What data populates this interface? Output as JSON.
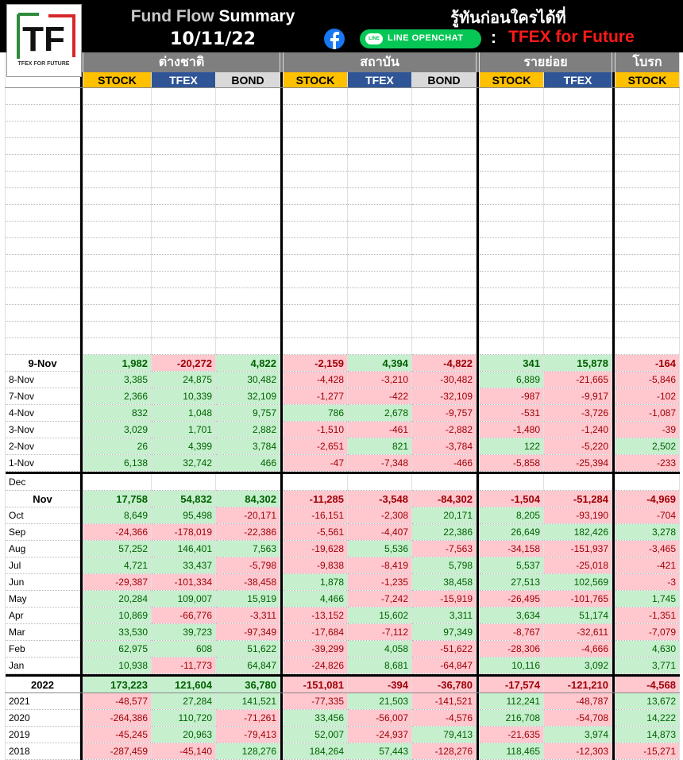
{
  "header": {
    "title_gray": "Fund Flow",
    "title_white": "Summary",
    "date": "10/11/22",
    "slogan": "รู้ทันก่อนใครได้ที่",
    "line_label": "LINE OPENCHAT",
    "line_bubble": "LINE",
    "colon": ":",
    "brand": "TFEX for Future",
    "logo_text": "TF",
    "logo_caption": "TFEX FOR FUTURE",
    "icon_facebook": "facebook-icon",
    "icon_line": "line-icon",
    "colors": {
      "positive_bg": "#c6efce",
      "negative_bg": "#ffc7ce",
      "stock": "#ffc000",
      "tfex": "#2f5597",
      "bond": "#d9d9d9",
      "group": "#7f7f7f",
      "brand_red": "#ff1a1a"
    }
  },
  "chart_data": {
    "type": "table",
    "groups": [
      {
        "name": "ต่างชาติ",
        "columns": [
          "STOCK",
          "TFEX",
          "BOND"
        ]
      },
      {
        "name": "สถาบัน",
        "columns": [
          "STOCK",
          "TFEX",
          "BOND"
        ]
      },
      {
        "name": "รายย่อย",
        "columns": [
          "STOCK",
          "TFEX"
        ]
      },
      {
        "name": "โบรก",
        "columns": [
          "STOCK"
        ]
      }
    ],
    "daily": [
      {
        "label": "9-Nov",
        "values": [
          1982,
          -20272,
          4822,
          -2159,
          4394,
          -4822,
          341,
          15878,
          -164
        ]
      },
      {
        "label": "8-Nov",
        "values": [
          3385,
          24875,
          30482,
          -4428,
          -3210,
          -30482,
          6889,
          -21665,
          -5846
        ]
      },
      {
        "label": "7-Nov",
        "values": [
          2366,
          10339,
          32109,
          -1277,
          -422,
          -32109,
          -987,
          -9917,
          -102
        ]
      },
      {
        "label": "4-Nov",
        "values": [
          832,
          1048,
          9757,
          786,
          2678,
          -9757,
          -531,
          -3726,
          -1087
        ]
      },
      {
        "label": "3-Nov",
        "values": [
          3029,
          1701,
          2882,
          -1510,
          -461,
          -2882,
          -1480,
          -1240,
          -39
        ]
      },
      {
        "label": "2-Nov",
        "values": [
          26,
          4399,
          3784,
          -2651,
          821,
          -3784,
          122,
          -5220,
          2502
        ]
      },
      {
        "label": "1-Nov",
        "values": [
          6138,
          32742,
          466,
          -47,
          -7348,
          -466,
          -5858,
          -25394,
          -233
        ]
      }
    ],
    "monthly": [
      {
        "label": "Dec",
        "values": null
      },
      {
        "label": "Nov",
        "values": [
          17758,
          54832,
          84302,
          -11285,
          -3548,
          -84302,
          -1504,
          -51284,
          -4969
        ]
      },
      {
        "label": "Oct",
        "values": [
          8649,
          95498,
          -20171,
          -16151,
          -2308,
          20171,
          8205,
          -93190,
          -704
        ]
      },
      {
        "label": "Sep",
        "values": [
          -24366,
          -178019,
          -22386,
          -5561,
          -4407,
          22386,
          26649,
          182426,
          3278
        ]
      },
      {
        "label": "Aug",
        "values": [
          57252,
          146401,
          7563,
          -19628,
          5536,
          -7563,
          -34158,
          -151937,
          -3465
        ]
      },
      {
        "label": "Jul",
        "values": [
          4721,
          33437,
          -5798,
          -9838,
          -8419,
          5798,
          5537,
          -25018,
          -421
        ]
      },
      {
        "label": "Jun",
        "values": [
          -29387,
          -101334,
          -38458,
          1878,
          -1235,
          38458,
          27513,
          102569,
          -3
        ]
      },
      {
        "label": "May",
        "values": [
          20284,
          109007,
          15919,
          4466,
          -7242,
          -15919,
          -26495,
          -101765,
          1745
        ]
      },
      {
        "label": "Apr",
        "values": [
          10869,
          -66776,
          -3311,
          -13152,
          15602,
          3311,
          3634,
          51174,
          -1351
        ]
      },
      {
        "label": "Mar",
        "values": [
          33530,
          39723,
          -97349,
          -17684,
          -7112,
          97349,
          -8767,
          -32611,
          -7079
        ]
      },
      {
        "label": "Feb",
        "values": [
          62975,
          608,
          51622,
          -39299,
          4058,
          -51622,
          -28306,
          -4666,
          4630
        ]
      },
      {
        "label": "Jan",
        "values": [
          10938,
          -11773,
          64847,
          -24826,
          8681,
          -64847,
          10116,
          3092,
          3771
        ]
      }
    ],
    "yearly": [
      {
        "label": "2022",
        "values": [
          173223,
          121604,
          36780,
          -151081,
          -394,
          -36780,
          -17574,
          -121210,
          -4568
        ]
      },
      {
        "label": "2021",
        "values": [
          -48577,
          27284,
          141521,
          -77335,
          21503,
          -141521,
          112241,
          -48787,
          13672
        ]
      },
      {
        "label": "2020",
        "values": [
          -264386,
          110720,
          -71261,
          33456,
          -56007,
          -4576,
          216708,
          -54708,
          14222
        ]
      },
      {
        "label": "2019",
        "values": [
          -45245,
          20963,
          -79413,
          52007,
          -24937,
          79413,
          -21635,
          3974,
          14873
        ]
      },
      {
        "label": "2018",
        "values": [
          -287459,
          -45140,
          128276,
          184264,
          57443,
          -128276,
          118465,
          -12303,
          -15271
        ]
      }
    ]
  }
}
